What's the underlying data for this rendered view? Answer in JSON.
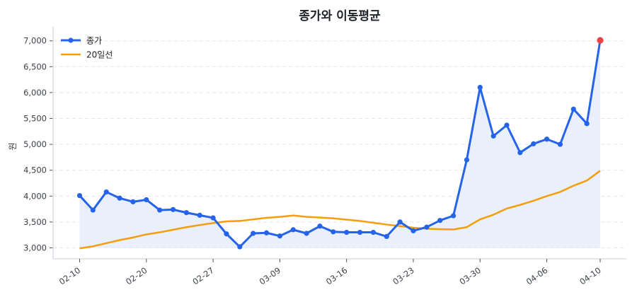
{
  "chart_data": {
    "type": "line",
    "title": "종가와 이동평균",
    "xlabel": "",
    "ylabel": "원",
    "ylim": [
      2800,
      7230
    ],
    "yticks": [
      3000,
      3500,
      4000,
      4500,
      5000,
      5500,
      6000,
      6500,
      7000
    ],
    "ytick_labels": [
      "3,000",
      "3,500",
      "4,000",
      "4,500",
      "5,000",
      "5,500",
      "6,000",
      "6,500",
      "7,000"
    ],
    "xtick_labels": [
      {
        "index": 0,
        "label": "02-10"
      },
      {
        "index": 5,
        "label": "02-20"
      },
      {
        "index": 10,
        "label": "02-27"
      },
      {
        "index": 15,
        "label": "03-09"
      },
      {
        "index": 20,
        "label": "03-16"
      },
      {
        "index": 25,
        "label": "03-23"
      },
      {
        "index": 30,
        "label": "03-30"
      },
      {
        "index": 35,
        "label": "04-06"
      },
      {
        "index": 39,
        "label": "04-10"
      }
    ],
    "grid": "horizontal dashed",
    "legend_position": "upper left",
    "series": [
      {
        "name": "종가",
        "color": "#2563eb",
        "marker": "circle",
        "fill_below": true,
        "fill_color": "#e8eefb",
        "last_point_color": "#ef4444",
        "values": [
          4010,
          3730,
          4080,
          3960,
          3890,
          3930,
          3730,
          3740,
          3680,
          3630,
          3580,
          3270,
          3020,
          3280,
          3290,
          3230,
          3350,
          3280,
          3420,
          3310,
          3300,
          3300,
          3300,
          3220,
          3500,
          3330,
          3400,
          3530,
          3620,
          4700,
          6100,
          5160,
          5370,
          4840,
          5010,
          5100,
          5000,
          5680,
          5400,
          7010
        ]
      },
      {
        "name": "20일선",
        "color": "#f59e0b",
        "marker": "none",
        "values": [
          2990,
          3030,
          3090,
          3150,
          3200,
          3260,
          3300,
          3350,
          3400,
          3440,
          3480,
          3510,
          3520,
          3550,
          3580,
          3600,
          3625,
          3600,
          3585,
          3570,
          3545,
          3520,
          3485,
          3450,
          3420,
          3390,
          3370,
          3360,
          3355,
          3400,
          3550,
          3640,
          3760,
          3830,
          3910,
          4000,
          4080,
          4200,
          4300,
          4490
        ]
      }
    ]
  },
  "legend": {
    "items": [
      {
        "label": "종가"
      },
      {
        "label": "20일선"
      }
    ]
  }
}
